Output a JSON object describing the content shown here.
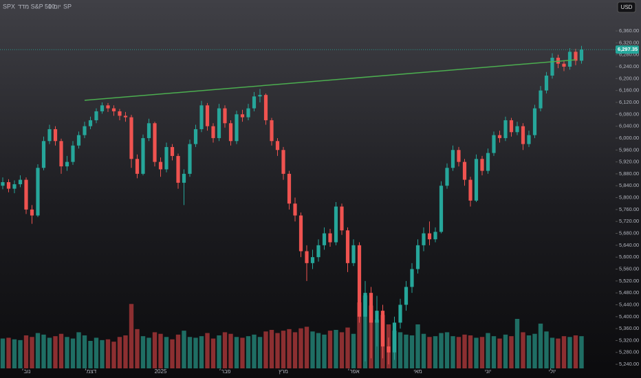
{
  "chart_data": {
    "type": "candlestick",
    "symbol": "SPX",
    "name": "מדד S&P 500",
    "interval": "1 יום",
    "exchange": "SP",
    "currency": "USD",
    "up_color": "#26a69a",
    "down_color": "#ef5350",
    "volume_up_color": "#1f6e64",
    "volume_down_color": "#8c2f31",
    "categories": [
      null,
      null,
      null,
      null,
      "נוב׳",
      null,
      null,
      null,
      null,
      null,
      null,
      null,
      null,
      null,
      null,
      "דצמ׳",
      null,
      null,
      null,
      null,
      null,
      null,
      null,
      null,
      null,
      null,
      null,
      "2025",
      null,
      null,
      null,
      null,
      null,
      null,
      null,
      null,
      null,
      null,
      "פבר׳",
      null,
      null,
      null,
      null,
      null,
      null,
      null,
      null,
      null,
      "מרץ",
      null,
      null,
      null,
      null,
      null,
      null,
      null,
      null,
      null,
      null,
      null,
      "אפר׳",
      null,
      null,
      null,
      null,
      null,
      null,
      null,
      null,
      null,
      null,
      "מאי",
      null,
      null,
      null,
      null,
      null,
      null,
      null,
      null,
      null,
      null,
      null,
      "יוני",
      null,
      null,
      null,
      null,
      null,
      null,
      null,
      null,
      null,
      null,
      "יולי",
      null,
      null,
      null,
      null,
      null
    ],
    "open": [
      5840,
      5852,
      5830,
      5845,
      5860,
      5760,
      5740,
      5900,
      5990,
      6030,
      5990,
      5905,
      5920,
      5975,
      6010,
      6040,
      6060,
      6090,
      6110,
      6100,
      6090,
      6075,
      6070,
      5930,
      5880,
      6000,
      6050,
      5920,
      5895,
      5970,
      5940,
      5850,
      5880,
      5980,
      6030,
      6110,
      6040,
      6000,
      6100,
      6050,
      5990,
      6080,
      6070,
      6100,
      6140,
      6145,
      6060,
      5990,
      5960,
      5880,
      5780,
      5740,
      5620,
      5580,
      5600,
      5640,
      5680,
      5650,
      5770,
      5690,
      5580,
      5640,
      5400,
      5480,
      5380,
      5420,
      5300,
      5280,
      5380,
      5440,
      5500,
      5560,
      5640,
      5680,
      5660,
      5685,
      5840,
      5900,
      5960,
      5920,
      5860,
      5790,
      5930,
      5890,
      5950,
      6010,
      6000,
      6060,
      6020,
      6040,
      5980,
      6010,
      6100,
      6160,
      6210,
      6270,
      6250,
      6240,
      6290,
      6260
    ],
    "high": [
      5868,
      5862,
      5858,
      5875,
      5868,
      5775,
      5912,
      6005,
      6045,
      6040,
      5998,
      5940,
      5990,
      6022,
      6055,
      6072,
      6100,
      6120,
      6118,
      6110,
      6098,
      6088,
      6078,
      5945,
      6012,
      6065,
      6055,
      5935,
      5985,
      5980,
      5948,
      5895,
      5995,
      6045,
      6125,
      6118,
      6050,
      6115,
      6110,
      6060,
      6092,
      6095,
      6115,
      6155,
      6165,
      6150,
      6068,
      6000,
      5970,
      5890,
      5800,
      5750,
      5640,
      5625,
      5660,
      5700,
      5695,
      5785,
      5780,
      5700,
      5660,
      5650,
      5520,
      5500,
      5470,
      5440,
      5330,
      5400,
      5460,
      5520,
      5580,
      5660,
      5700,
      5720,
      5700,
      5855,
      5915,
      5975,
      5970,
      5930,
      5870,
      5945,
      5940,
      5965,
      6022,
      6025,
      6072,
      6068,
      6055,
      6050,
      6025,
      6112,
      6175,
      6222,
      6285,
      6280,
      6262,
      6302,
      6300,
      6310
    ],
    "low": [
      5828,
      5818,
      5815,
      5835,
      5745,
      5712,
      5735,
      5892,
      5980,
      5975,
      5880,
      5890,
      5910,
      5965,
      6000,
      6030,
      6050,
      6082,
      6088,
      6075,
      6060,
      6055,
      5900,
      5865,
      5875,
      5990,
      5905,
      5870,
      5885,
      5925,
      5830,
      5775,
      5870,
      5970,
      6020,
      6025,
      5985,
      5990,
      6035,
      5975,
      5980,
      6055,
      6060,
      6090,
      6120,
      6045,
      5975,
      5940,
      5860,
      5760,
      5720,
      5600,
      5520,
      5560,
      5585,
      5625,
      5635,
      5640,
      5675,
      5550,
      5570,
      5380,
      5250,
      5260,
      5300,
      5260,
      5240,
      5255,
      5360,
      5420,
      5480,
      5545,
      5620,
      5640,
      5650,
      5680,
      5830,
      5890,
      5905,
      5840,
      5770,
      5785,
      5875,
      5880,
      5940,
      5985,
      5990,
      6005,
      6010,
      5960,
      5970,
      6000,
      6090,
      6150,
      6200,
      6235,
      6225,
      6230,
      6245,
      6250
    ],
    "close": [
      5852,
      5830,
      5845,
      5860,
      5760,
      5740,
      5900,
      5990,
      6030,
      5990,
      5905,
      5920,
      5975,
      6010,
      6040,
      6060,
      6090,
      6110,
      6100,
      6090,
      6075,
      6070,
      5930,
      5880,
      6000,
      6050,
      5920,
      5895,
      5970,
      5940,
      5850,
      5880,
      5980,
      6030,
      6110,
      6040,
      6000,
      6100,
      6050,
      5990,
      6080,
      6070,
      6100,
      6140,
      6145,
      6060,
      5990,
      5960,
      5880,
      5780,
      5740,
      5620,
      5580,
      5600,
      5640,
      5680,
      5650,
      5770,
      5690,
      5580,
      5640,
      5400,
      5480,
      5380,
      5420,
      5300,
      5280,
      5380,
      5440,
      5500,
      5560,
      5640,
      5680,
      5660,
      5685,
      5840,
      5900,
      5960,
      5920,
      5860,
      5790,
      5930,
      5890,
      5950,
      6010,
      6000,
      6060,
      6020,
      6040,
      5980,
      6010,
      6100,
      6160,
      6210,
      6270,
      6250,
      6240,
      6290,
      6260,
      6297.35
    ],
    "volume": [
      3.8,
      3.9,
      3.7,
      3.6,
      4.2,
      4.0,
      4.5,
      4.3,
      3.9,
      4.1,
      4.4,
      4.0,
      3.8,
      4.6,
      4.2,
      3.5,
      3.9,
      3.6,
      3.7,
      3.4,
      4.0,
      4.2,
      8.2,
      5.0,
      4.1,
      3.9,
      4.6,
      4.4,
      4.0,
      3.7,
      4.3,
      4.8,
      4.0,
      3.9,
      4.1,
      4.5,
      3.8,
      4.2,
      4.6,
      4.4,
      4.0,
      3.9,
      4.1,
      4.3,
      4.0,
      4.7,
      4.9,
      4.5,
      4.8,
      5.0,
      4.6,
      5.1,
      5.3,
      4.7,
      4.5,
      4.3,
      4.8,
      4.9,
      4.6,
      5.2,
      4.4,
      8.4,
      9.3,
      8.0,
      6.2,
      6.8,
      5.6,
      4.8,
      4.6,
      4.3,
      4.2,
      5.6,
      4.4,
      4.0,
      4.1,
      4.5,
      4.6,
      4.1,
      4.0,
      4.3,
      4.2,
      3.9,
      4.0,
      4.5,
      4.1,
      3.8,
      4.3,
      4.1,
      6.3,
      4.6,
      4.2,
      4.4,
      5.7,
      4.7,
      3.9,
      3.8,
      4.1,
      4.0,
      4.2,
      4.1
    ],
    "vlim": [
      0,
      14
    ],
    "ylim": [
      5194,
      6464
    ],
    "yticks": [
      {
        "value": 5240,
        "label": "5,240.00"
      },
      {
        "value": 5280,
        "label": "5,280.00"
      },
      {
        "value": 5320,
        "label": "5,320.00"
      },
      {
        "value": 5360,
        "label": "5,360.00"
      },
      {
        "value": 5400,
        "label": "5,400.00"
      },
      {
        "value": 5440,
        "label": "5,440.00"
      },
      {
        "value": 5480,
        "label": "5,480.00"
      },
      {
        "value": 5520,
        "label": "5,520.00"
      },
      {
        "value": 5560,
        "label": "5,560.00"
      },
      {
        "value": 5600,
        "label": "5,600.00"
      },
      {
        "value": 5640,
        "label": "5,640.00"
      },
      {
        "value": 5680,
        "label": "5,680.00"
      },
      {
        "value": 5720,
        "label": "5,720.00"
      },
      {
        "value": 5760,
        "label": "5,760.00"
      },
      {
        "value": 5800,
        "label": "5,800.00"
      },
      {
        "value": 5840,
        "label": "5,840.00"
      },
      {
        "value": 5880,
        "label": "5,880.00"
      },
      {
        "value": 5920,
        "label": "5,920.00"
      },
      {
        "value": 5960,
        "label": "5,960.00"
      },
      {
        "value": 6000,
        "label": "6,000.00"
      },
      {
        "value": 6040,
        "label": "6,040.00"
      },
      {
        "value": 6080,
        "label": "6,080.00"
      },
      {
        "value": 6120,
        "label": "6,120.00"
      },
      {
        "value": 6160,
        "label": "6,160.00"
      },
      {
        "value": 6200,
        "label": "6,200.00"
      },
      {
        "value": 6240,
        "label": "6,240.00"
      },
      {
        "value": 6280,
        "label": "6,280.00"
      },
      {
        "value": 6320,
        "label": "6,320.00"
      },
      {
        "value": 6360,
        "label": "6,360.00"
      }
    ],
    "last_price": {
      "value": 6297.35,
      "label": "6,297.35"
    },
    "trendline": {
      "start": [
        14,
        6127
      ],
      "end": [
        98,
        6263
      ],
      "color": "#4caf50"
    }
  }
}
